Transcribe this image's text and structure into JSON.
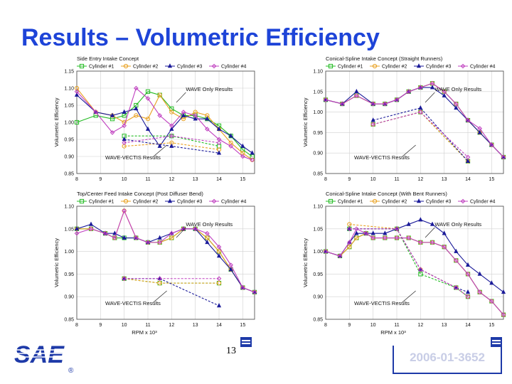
{
  "slide": {
    "title": "Results – Volumetric Efficiency",
    "page_number": "13",
    "doc_id": "2006-01-3652",
    "logo_text": "SAE",
    "logo_mark": "®",
    "title_color": "#1e44d8"
  },
  "series_colors": {
    "Cylinder #1": "#22bb22",
    "Cylinder #2": "#e8a020",
    "Cylinder #3": "#1a1a99",
    "Cylinder #4": "#c040c0"
  },
  "chart_data": [
    {
      "type": "line",
      "title": "Side Entry Intake Concept",
      "ylabel": "Volumetric Efficiency",
      "xlabel": "",
      "xlim": [
        8,
        15.5
      ],
      "ylim": [
        0.85,
        1.15
      ],
      "xticks": [
        "8",
        "9",
        "10",
        "11",
        "12",
        "13",
        "14",
        "15"
      ],
      "yticks": [
        "0.85",
        "0.90",
        "0.95",
        "1.00",
        "1.05",
        "1.10",
        "1.15"
      ],
      "legend": [
        "Cylinder #1",
        "Cylinder #2",
        "Cylinder #3",
        "Cylinder #4"
      ],
      "legend_position": "top",
      "annotations": [
        "WAVE Only Results",
        "WAVE-VECTIS Results"
      ],
      "series": [
        {
          "name": "Cylinder #1",
          "group": "wave",
          "x": [
            8,
            8.8,
            9.5,
            10,
            10.5,
            11,
            11.5,
            12,
            12.5,
            13,
            13.5,
            14,
            14.5,
            15,
            15.4
          ],
          "y": [
            1.0,
            1.02,
            1.01,
            1.02,
            1.05,
            1.09,
            1.08,
            1.04,
            1.02,
            1.02,
            1.01,
            0.99,
            0.96,
            0.92,
            0.9
          ]
        },
        {
          "name": "Cylinder #2",
          "group": "wave",
          "x": [
            8,
            8.8,
            9.5,
            10,
            10.5,
            11,
            11.5,
            12,
            12.5,
            13,
            13.5,
            14,
            14.5,
            15,
            15.4
          ],
          "y": [
            1.1,
            1.03,
            1.02,
            1.0,
            1.02,
            1.01,
            1.08,
            1.03,
            1.01,
            1.03,
            1.02,
            0.98,
            0.94,
            0.91,
            0.89
          ]
        },
        {
          "name": "Cylinder #3",
          "group": "wave",
          "x": [
            8,
            8.8,
            9.5,
            10,
            10.5,
            11,
            11.5,
            12,
            12.5,
            13,
            13.5,
            14,
            14.5,
            15,
            15.4
          ],
          "y": [
            1.08,
            1.03,
            1.02,
            1.03,
            1.04,
            0.98,
            0.93,
            0.98,
            1.02,
            1.01,
            1.01,
            0.98,
            0.96,
            0.93,
            0.91
          ]
        },
        {
          "name": "Cylinder #4",
          "group": "wave",
          "x": [
            8,
            8.8,
            9.5,
            10,
            10.5,
            11,
            11.5,
            12,
            12.5,
            13,
            13.5,
            14,
            14.5,
            15,
            15.4
          ],
          "y": [
            1.09,
            1.03,
            0.97,
            0.99,
            1.1,
            1.07,
            1.02,
            0.99,
            1.03,
            1.02,
            0.98,
            0.95,
            0.93,
            0.9,
            0.89
          ]
        },
        {
          "name": "Cylinder #1",
          "group": "vectis",
          "x": [
            10,
            12,
            14
          ],
          "y": [
            0.96,
            0.96,
            0.93
          ]
        },
        {
          "name": "Cylinder #2",
          "group": "vectis",
          "x": [
            10,
            12,
            14
          ],
          "y": [
            0.93,
            0.94,
            0.92
          ]
        },
        {
          "name": "Cylinder #3",
          "group": "vectis",
          "x": [
            10,
            12,
            14
          ],
          "y": [
            0.95,
            0.93,
            0.91
          ]
        },
        {
          "name": "Cylinder #4",
          "group": "vectis",
          "x": [
            10,
            12,
            14
          ],
          "y": [
            0.94,
            0.96,
            0.94
          ]
        }
      ]
    },
    {
      "type": "line",
      "title": "Conical-Spline Intake Concept (Straight Runners)",
      "ylabel": "Volumetric Efficiency",
      "xlabel": "",
      "xlim": [
        8,
        15.5
      ],
      "ylim": [
        0.85,
        1.1
      ],
      "xticks": [
        "8",
        "9",
        "10",
        "11",
        "12",
        "13",
        "14",
        "15"
      ],
      "yticks": [
        "0.85",
        "0.90",
        "0.95",
        "1.00",
        "1.05",
        "1.10"
      ],
      "legend": [
        "Cylinder #1",
        "Cylinder #2",
        "Cylinder #3",
        "Cylinder #4"
      ],
      "legend_position": "top",
      "annotations": [
        "WAVE Only Results",
        "WAVE-VECTIS Results"
      ],
      "series": [
        {
          "name": "Cylinder #1",
          "group": "wave",
          "x": [
            8,
            8.7,
            9.3,
            10,
            10.5,
            11,
            11.5,
            12,
            12.5,
            13,
            13.5,
            14,
            14.5,
            15,
            15.5
          ],
          "y": [
            1.03,
            1.02,
            1.04,
            1.02,
            1.02,
            1.03,
            1.05,
            1.06,
            1.07,
            1.05,
            1.02,
            0.98,
            0.95,
            0.92,
            0.89
          ]
        },
        {
          "name": "Cylinder #2",
          "group": "wave",
          "x": [
            8,
            8.7,
            9.3,
            10,
            10.5,
            11,
            11.5,
            12,
            12.5,
            13,
            13.5,
            14,
            14.5,
            15,
            15.5
          ],
          "y": [
            1.03,
            1.02,
            1.04,
            1.02,
            1.02,
            1.03,
            1.05,
            1.06,
            1.07,
            1.05,
            1.02,
            0.98,
            0.95,
            0.92,
            0.89
          ]
        },
        {
          "name": "Cylinder #3",
          "group": "wave",
          "x": [
            8,
            8.7,
            9.3,
            10,
            10.5,
            11,
            11.5,
            12,
            12.5,
            13,
            13.5,
            14,
            14.5,
            15,
            15.5
          ],
          "y": [
            1.03,
            1.02,
            1.05,
            1.02,
            1.02,
            1.03,
            1.05,
            1.06,
            1.06,
            1.04,
            1.01,
            0.98,
            0.95,
            0.92,
            0.89
          ]
        },
        {
          "name": "Cylinder #4",
          "group": "wave",
          "x": [
            8,
            8.7,
            9.3,
            10,
            10.5,
            11,
            11.5,
            12,
            12.5,
            13,
            13.5,
            14,
            14.5,
            15,
            15.5
          ],
          "y": [
            1.03,
            1.02,
            1.04,
            1.02,
            1.02,
            1.03,
            1.05,
            1.06,
            1.07,
            1.05,
            1.02,
            0.98,
            0.96,
            0.92,
            0.89
          ]
        },
        {
          "name": "Cylinder #1",
          "group": "vectis",
          "x": [
            10,
            12,
            14
          ],
          "y": [
            0.97,
            1.0,
            0.88
          ]
        },
        {
          "name": "Cylinder #2",
          "group": "vectis",
          "x": [
            10,
            12,
            14
          ],
          "y": [
            0.97,
            1.0,
            0.88
          ]
        },
        {
          "name": "Cylinder #3",
          "group": "vectis",
          "x": [
            10,
            12,
            14
          ],
          "y": [
            0.98,
            1.01,
            0.88
          ]
        },
        {
          "name": "Cylinder #4",
          "group": "vectis",
          "x": [
            10,
            12,
            14
          ],
          "y": [
            0.97,
            1.0,
            0.89
          ]
        }
      ]
    },
    {
      "type": "line",
      "title": "Top/Center Feed Intake Concept (Post Diffuser Bend)",
      "ylabel": "Volumetric Efficiency",
      "xlabel": "RPM x 10³",
      "xlim": [
        8,
        15.5
      ],
      "ylim": [
        0.85,
        1.1
      ],
      "xticks": [
        "8",
        "9",
        "10",
        "11",
        "12",
        "13",
        "14",
        "15"
      ],
      "yticks": [
        "0.85",
        "0.90",
        "0.95",
        "1.00",
        "1.05",
        "1.10"
      ],
      "legend": [
        "Cylinder #1",
        "Cylinder #2",
        "Cylinder #3",
        "Cylinder #4"
      ],
      "legend_position": "top",
      "annotations": [
        "WAVE Only Results",
        "WAVE-VECTIS Results"
      ],
      "series": [
        {
          "name": "Cylinder #1",
          "group": "wave",
          "x": [
            8,
            8.6,
            9.2,
            9.6,
            10,
            10.5,
            11,
            11.5,
            12,
            12.5,
            13,
            13.5,
            14,
            14.5,
            15,
            15.5
          ],
          "y": [
            1.05,
            1.05,
            1.04,
            1.03,
            1.03,
            1.03,
            1.02,
            1.02,
            1.03,
            1.05,
            1.05,
            1.03,
            1.0,
            0.96,
            0.92,
            0.91
          ]
        },
        {
          "name": "Cylinder #2",
          "group": "wave",
          "x": [
            8,
            8.6,
            9.2,
            9.6,
            10,
            10.5,
            11,
            11.5,
            12,
            12.5,
            13,
            13.5,
            14,
            14.5,
            15,
            15.5
          ],
          "y": [
            1.05,
            1.05,
            1.04,
            1.03,
            1.09,
            1.03,
            1.02,
            1.02,
            1.03,
            1.05,
            1.05,
            1.03,
            1.0,
            0.96,
            0.92,
            0.91
          ]
        },
        {
          "name": "Cylinder #3",
          "group": "wave",
          "x": [
            8,
            8.6,
            9.2,
            9.6,
            10,
            10.5,
            11,
            11.5,
            12,
            12.5,
            13,
            13.5,
            14,
            14.5,
            15,
            15.5
          ],
          "y": [
            1.05,
            1.06,
            1.04,
            1.04,
            1.03,
            1.03,
            1.02,
            1.03,
            1.04,
            1.05,
            1.05,
            1.02,
            0.99,
            0.96,
            0.92,
            0.91
          ]
        },
        {
          "name": "Cylinder #4",
          "group": "wave",
          "x": [
            8,
            8.6,
            9.2,
            9.6,
            10,
            10.5,
            11,
            11.5,
            12,
            12.5,
            13,
            13.5,
            14,
            14.5,
            15,
            15.5
          ],
          "y": [
            1.04,
            1.05,
            1.04,
            1.03,
            1.09,
            1.03,
            1.02,
            1.02,
            1.04,
            1.05,
            1.05,
            1.04,
            1.01,
            0.97,
            0.92,
            0.91
          ]
        },
        {
          "name": "Cylinder #1",
          "group": "vectis",
          "x": [
            10,
            11.5,
            14
          ],
          "y": [
            0.94,
            0.93,
            0.93
          ]
        },
        {
          "name": "Cylinder #2",
          "group": "vectis",
          "x": [
            10,
            11.5,
            14
          ],
          "y": [
            0.94,
            0.93,
            0.93
          ]
        },
        {
          "name": "Cylinder #3",
          "group": "vectis",
          "x": [
            10,
            11.5,
            14
          ],
          "y": [
            0.94,
            0.94,
            0.88
          ]
        },
        {
          "name": "Cylinder #4",
          "group": "vectis",
          "x": [
            10,
            11.5,
            14
          ],
          "y": [
            0.94,
            0.94,
            0.94
          ]
        }
      ]
    },
    {
      "type": "line",
      "title": "Conical-Spline Intake Concept (With Bent Runners)",
      "ylabel": "Volumetric Efficiency",
      "xlabel": "RPM x 10³",
      "xlim": [
        8,
        15.5
      ],
      "ylim": [
        0.85,
        1.1
      ],
      "xticks": [
        "8",
        "9",
        "10",
        "11",
        "12",
        "13",
        "14",
        "15"
      ],
      "yticks": [
        "0.85",
        "0.90",
        "0.95",
        "1.00",
        "1.05",
        "1.10"
      ],
      "legend": [
        "Cylinder #1",
        "Cylinder #2",
        "Cylinder #3",
        "Cylinder #4"
      ],
      "legend_position": "top",
      "annotations": [
        "WAVE Only Results",
        "WAVE-VECTIS Results"
      ],
      "series": [
        {
          "name": "Cylinder #1",
          "group": "wave",
          "x": [
            8,
            8.6,
            9,
            9.3,
            9.7,
            10,
            10.5,
            11,
            11.5,
            12,
            12.5,
            13,
            13.5,
            14,
            14.5,
            15,
            15.5
          ],
          "y": [
            1.0,
            0.99,
            1.01,
            1.03,
            1.04,
            1.03,
            1.03,
            1.03,
            1.03,
            1.02,
            1.02,
            1.01,
            0.98,
            0.95,
            0.91,
            0.89,
            0.86
          ]
        },
        {
          "name": "Cylinder #2",
          "group": "wave",
          "x": [
            8,
            8.6,
            9,
            9.3,
            9.7,
            10,
            10.5,
            11,
            11.5,
            12,
            12.5,
            13,
            13.5,
            14,
            14.5,
            15,
            15.5
          ],
          "y": [
            1.0,
            0.99,
            1.01,
            1.03,
            1.04,
            1.03,
            1.03,
            1.03,
            1.03,
            1.02,
            1.02,
            1.01,
            0.98,
            0.95,
            0.91,
            0.89,
            0.86
          ]
        },
        {
          "name": "Cylinder #3",
          "group": "wave",
          "x": [
            8,
            8.6,
            9,
            9.3,
            9.7,
            10,
            10.5,
            11,
            11.5,
            12,
            12.5,
            13,
            13.5,
            14,
            14.5,
            15,
            15.5
          ],
          "y": [
            1.0,
            0.99,
            1.02,
            1.04,
            1.04,
            1.04,
            1.04,
            1.05,
            1.06,
            1.07,
            1.06,
            1.04,
            1.0,
            0.97,
            0.95,
            0.93,
            0.91
          ]
        },
        {
          "name": "Cylinder #4",
          "group": "wave",
          "x": [
            8,
            8.6,
            9,
            9.3,
            9.7,
            10,
            10.5,
            11,
            11.5,
            12,
            12.5,
            13,
            13.5,
            14,
            14.5,
            15,
            15.5
          ],
          "y": [
            1.0,
            0.99,
            1.02,
            1.05,
            1.04,
            1.03,
            1.03,
            1.03,
            1.03,
            1.02,
            1.02,
            1.01,
            0.98,
            0.95,
            0.91,
            0.89,
            0.86
          ]
        },
        {
          "name": "Cylinder #1",
          "group": "vectis",
          "x": [
            9,
            11,
            12,
            13.5,
            14
          ],
          "y": [
            1.05,
            1.05,
            0.95,
            0.92,
            0.9
          ]
        },
        {
          "name": "Cylinder #2",
          "group": "vectis",
          "x": [
            9,
            11,
            12,
            13.5,
            14
          ],
          "y": [
            1.06,
            1.05,
            0.96,
            0.92,
            0.9
          ]
        },
        {
          "name": "Cylinder #3",
          "group": "vectis",
          "x": [
            9,
            11,
            12,
            13.5,
            14
          ],
          "y": [
            1.05,
            1.05,
            0.96,
            0.92,
            0.91
          ]
        },
        {
          "name": "Cylinder #4",
          "group": "vectis",
          "x": [
            9,
            11,
            12,
            13.5,
            14
          ],
          "y": [
            1.05,
            1.05,
            0.96,
            0.92,
            0.9
          ]
        }
      ]
    }
  ]
}
